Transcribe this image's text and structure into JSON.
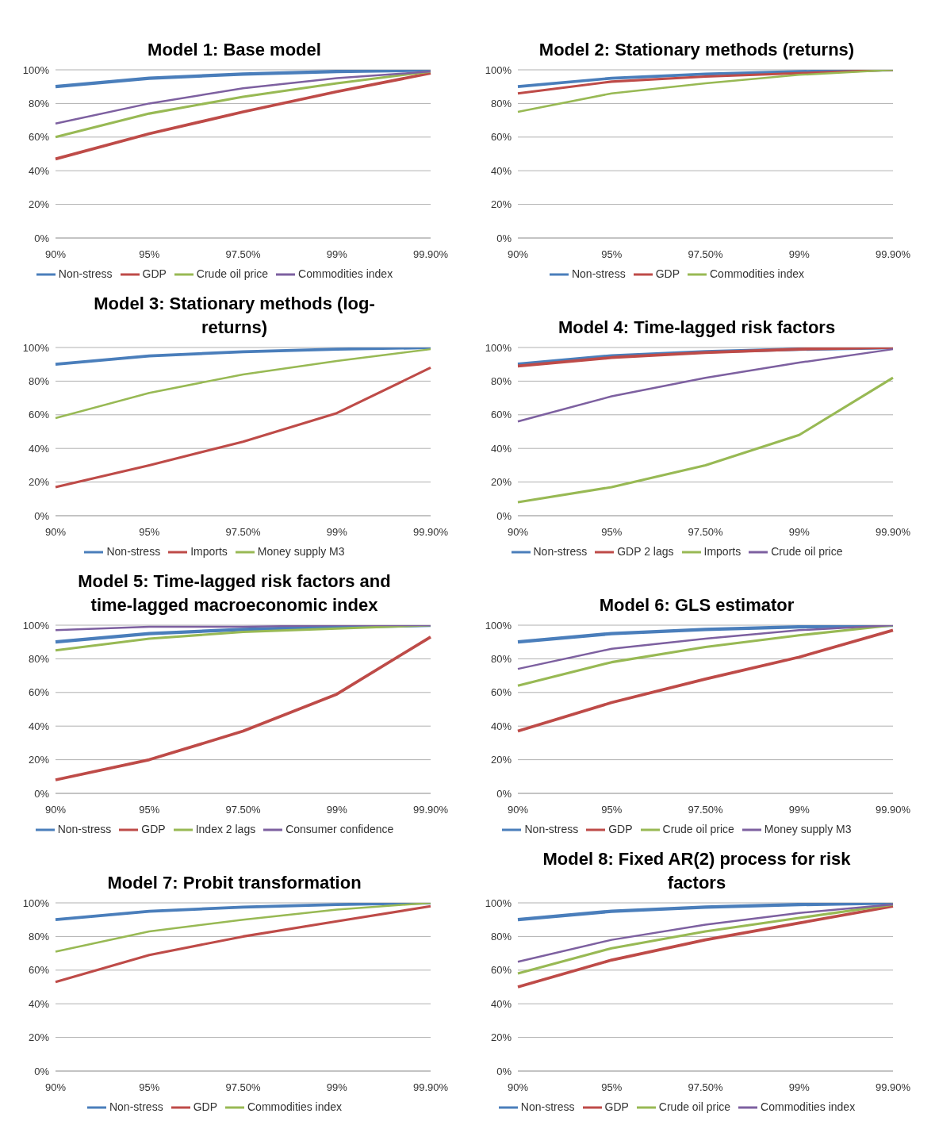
{
  "chart_data": [
    {
      "type": "line",
      "title": "Model 1: Base model",
      "categories": [
        "90%",
        "95%",
        "97.50%",
        "99%",
        "99.90%"
      ],
      "ylim": [
        0,
        100
      ],
      "yticks": [
        {
          "value": 0,
          "label": "0%"
        },
        {
          "value": 20,
          "label": "20%"
        },
        {
          "value": 40,
          "label": "40%"
        },
        {
          "value": 60,
          "label": "60%"
        },
        {
          "value": 80,
          "label": "80%"
        },
        {
          "value": 100,
          "label": "100%"
        }
      ],
      "grid": "y",
      "legend": "bottom",
      "marker": "none",
      "series": [
        {
          "name": "Non-stress",
          "color": "#4a7ebb",
          "values": [
            90,
            95,
            97.5,
            99,
            99.9
          ]
        },
        {
          "name": "GDP",
          "color": "#be4b48",
          "values": [
            47,
            62,
            75,
            87,
            98
          ]
        },
        {
          "name": "Crude oil price",
          "color": "#98b954",
          "values": [
            60,
            74,
            84,
            92,
            99
          ]
        },
        {
          "name": "Commodities index",
          "color": "#7d60a0",
          "values": [
            68,
            80,
            89,
            95,
            99
          ]
        }
      ]
    },
    {
      "type": "line",
      "title": "Model 2: Stationary methods (returns)",
      "categories": [
        "90%",
        "95%",
        "97.50%",
        "99%",
        "99.90%"
      ],
      "ylim": [
        0,
        100
      ],
      "yticks": [
        {
          "value": 0,
          "label": "0%"
        },
        {
          "value": 20,
          "label": "20%"
        },
        {
          "value": 40,
          "label": "40%"
        },
        {
          "value": 60,
          "label": "60%"
        },
        {
          "value": 80,
          "label": "80%"
        },
        {
          "value": 100,
          "label": "100%"
        }
      ],
      "grid": "y",
      "legend": "bottom",
      "marker": "none",
      "series": [
        {
          "name": "Non-stress",
          "color": "#4a7ebb",
          "values": [
            90,
            95,
            97.5,
            99,
            99.9
          ]
        },
        {
          "name": "GDP",
          "color": "#be4b48",
          "values": [
            86,
            93,
            96,
            98,
            100
          ]
        },
        {
          "name": "Commodities index",
          "color": "#98b954",
          "values": [
            75,
            86,
            92,
            97,
            100
          ]
        }
      ]
    },
    {
      "type": "line",
      "title": "Model 3: Stationary methods (log-returns)",
      "categories": [
        "90%",
        "95%",
        "97.50%",
        "99%",
        "99.90%"
      ],
      "ylim": [
        0,
        100
      ],
      "yticks": [
        {
          "value": 0,
          "label": "0%"
        },
        {
          "value": 20,
          "label": "20%"
        },
        {
          "value": 40,
          "label": "40%"
        },
        {
          "value": 60,
          "label": "60%"
        },
        {
          "value": 80,
          "label": "80%"
        },
        {
          "value": 100,
          "label": "100%"
        }
      ],
      "grid": "y",
      "legend": "bottom",
      "marker": "none",
      "series": [
        {
          "name": "Non-stress",
          "color": "#4a7ebb",
          "values": [
            90,
            95,
            97.5,
            99,
            99.9
          ]
        },
        {
          "name": "Imports",
          "color": "#be4b48",
          "values": [
            17,
            30,
            44,
            61,
            88
          ]
        },
        {
          "name": "Money supply M3",
          "color": "#98b954",
          "values": [
            58,
            73,
            84,
            92,
            99
          ]
        }
      ]
    },
    {
      "type": "line",
      "title": "Model 4: Time-lagged risk factors",
      "categories": [
        "90%",
        "95%",
        "97.50%",
        "99%",
        "99.90%"
      ],
      "ylim": [
        0,
        100
      ],
      "yticks": [
        {
          "value": 0,
          "label": "0%"
        },
        {
          "value": 20,
          "label": "20%"
        },
        {
          "value": 40,
          "label": "40%"
        },
        {
          "value": 60,
          "label": "60%"
        },
        {
          "value": 80,
          "label": "80%"
        },
        {
          "value": 100,
          "label": "100%"
        }
      ],
      "grid": "y",
      "legend": "bottom",
      "marker": "none",
      "series": [
        {
          "name": "Non-stress",
          "color": "#4a7ebb",
          "values": [
            90,
            95,
            97.5,
            99,
            99.9
          ]
        },
        {
          "name": "GDP 2 lags",
          "color": "#be4b48",
          "values": [
            89,
            94,
            97,
            99,
            100
          ]
        },
        {
          "name": "Imports",
          "color": "#98b954",
          "values": [
            8,
            17,
            30,
            48,
            82
          ]
        },
        {
          "name": "Crude oil price",
          "color": "#7d60a0",
          "values": [
            56,
            71,
            82,
            91,
            99
          ]
        }
      ]
    },
    {
      "type": "line",
      "title": "Model 5: Time-lagged risk factors and time-lagged macroeconomic index",
      "categories": [
        "90%",
        "95%",
        "97.50%",
        "99%",
        "99.90%"
      ],
      "ylim": [
        0,
        100
      ],
      "yticks": [
        {
          "value": 0,
          "label": "0%"
        },
        {
          "value": 20,
          "label": "20%"
        },
        {
          "value": 40,
          "label": "40%"
        },
        {
          "value": 60,
          "label": "60%"
        },
        {
          "value": 80,
          "label": "80%"
        },
        {
          "value": 100,
          "label": "100%"
        }
      ],
      "grid": "y",
      "legend": "bottom",
      "marker": "none",
      "series": [
        {
          "name": "Non-stress",
          "color": "#4a7ebb",
          "values": [
            90,
            95,
            97.5,
            99,
            99.9
          ]
        },
        {
          "name": "GDP",
          "color": "#be4b48",
          "values": [
            8,
            20,
            37,
            59,
            93
          ]
        },
        {
          "name": "Index 2 lags",
          "color": "#98b954",
          "values": [
            85,
            92,
            96,
            98,
            100
          ]
        },
        {
          "name": "Consumer confidence",
          "color": "#7d60a0",
          "values": [
            97,
            99,
            99,
            100,
            100
          ]
        }
      ]
    },
    {
      "type": "line",
      "title": "Model 6: GLS estimator",
      "categories": [
        "90%",
        "95%",
        "97.50%",
        "99%",
        "99.90%"
      ],
      "ylim": [
        0,
        100
      ],
      "yticks": [
        {
          "value": 0,
          "label": "0%"
        },
        {
          "value": 20,
          "label": "20%"
        },
        {
          "value": 40,
          "label": "40%"
        },
        {
          "value": 60,
          "label": "60%"
        },
        {
          "value": 80,
          "label": "80%"
        },
        {
          "value": 100,
          "label": "100%"
        }
      ],
      "grid": "y",
      "legend": "bottom",
      "marker": "none",
      "series": [
        {
          "name": "Non-stress",
          "color": "#4a7ebb",
          "values": [
            90,
            95,
            97.5,
            99,
            99.9
          ]
        },
        {
          "name": "GDP",
          "color": "#be4b48",
          "values": [
            37,
            54,
            68,
            81,
            97
          ]
        },
        {
          "name": "Crude oil price",
          "color": "#98b954",
          "values": [
            64,
            78,
            87,
            94,
            100
          ]
        },
        {
          "name": "Money supply M3",
          "color": "#7d60a0",
          "values": [
            74,
            86,
            92,
            97,
            100
          ]
        }
      ]
    },
    {
      "type": "line",
      "title": "Model 7: Probit transformation",
      "categories": [
        "90%",
        "95%",
        "97.50%",
        "99%",
        "99.90%"
      ],
      "ylim": [
        0,
        100
      ],
      "yticks": [
        {
          "value": 0,
          "label": "0%"
        },
        {
          "value": 20,
          "label": "20%"
        },
        {
          "value": 40,
          "label": "40%"
        },
        {
          "value": 60,
          "label": "60%"
        },
        {
          "value": 80,
          "label": "80%"
        },
        {
          "value": 100,
          "label": "100%"
        }
      ],
      "grid": "y",
      "legend": "bottom",
      "marker": "none",
      "series": [
        {
          "name": "Non-stress",
          "color": "#4a7ebb",
          "values": [
            90,
            95,
            97.5,
            99,
            99.9
          ]
        },
        {
          "name": "GDP",
          "color": "#be4b48",
          "values": [
            53,
            69,
            80,
            89,
            98
          ]
        },
        {
          "name": "Commodities index",
          "color": "#98b954",
          "values": [
            71,
            83,
            90,
            96,
            100
          ]
        }
      ]
    },
    {
      "type": "line",
      "title": "Model 8: Fixed AR(2) process for risk factors",
      "categories": [
        "90%",
        "95%",
        "97.50%",
        "99%",
        "99.90%"
      ],
      "ylim": [
        0,
        100
      ],
      "yticks": [
        {
          "value": 0,
          "label": "0%"
        },
        {
          "value": 20,
          "label": "20%"
        },
        {
          "value": 40,
          "label": "40%"
        },
        {
          "value": 60,
          "label": "60%"
        },
        {
          "value": 80,
          "label": "80%"
        },
        {
          "value": 100,
          "label": "100%"
        }
      ],
      "grid": "y",
      "legend": "bottom",
      "marker": "none",
      "series": [
        {
          "name": "Non-stress",
          "color": "#4a7ebb",
          "values": [
            90,
            95,
            97.5,
            99,
            99.9
          ]
        },
        {
          "name": "GDP",
          "color": "#be4b48",
          "values": [
            50,
            66,
            78,
            88,
            98
          ]
        },
        {
          "name": "Crude oil price",
          "color": "#98b954",
          "values": [
            58,
            73,
            83,
            91,
            99
          ]
        },
        {
          "name": "Commodities index",
          "color": "#7d60a0",
          "values": [
            65,
            78,
            87,
            94,
            99
          ]
        }
      ]
    }
  ]
}
